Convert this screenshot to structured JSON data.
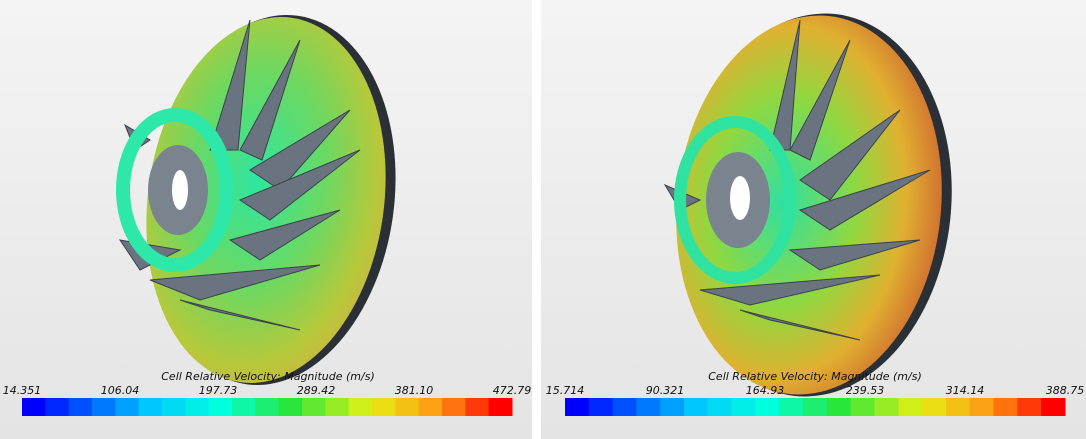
{
  "panels": [
    {
      "legend": {
        "title": "Cell Relative Velocity: Magnitude (m/s)",
        "ticks": [
          "14.351",
          "106.04",
          "197.73",
          "289.42",
          "381.10",
          "472.79"
        ]
      }
    },
    {
      "legend": {
        "title": "Cell Relative Velocity: Magnitude (m/s)",
        "ticks": [
          "15.714",
          "90.321",
          "164.93",
          "239.53",
          "314.14",
          "388.75"
        ]
      }
    }
  ]
}
